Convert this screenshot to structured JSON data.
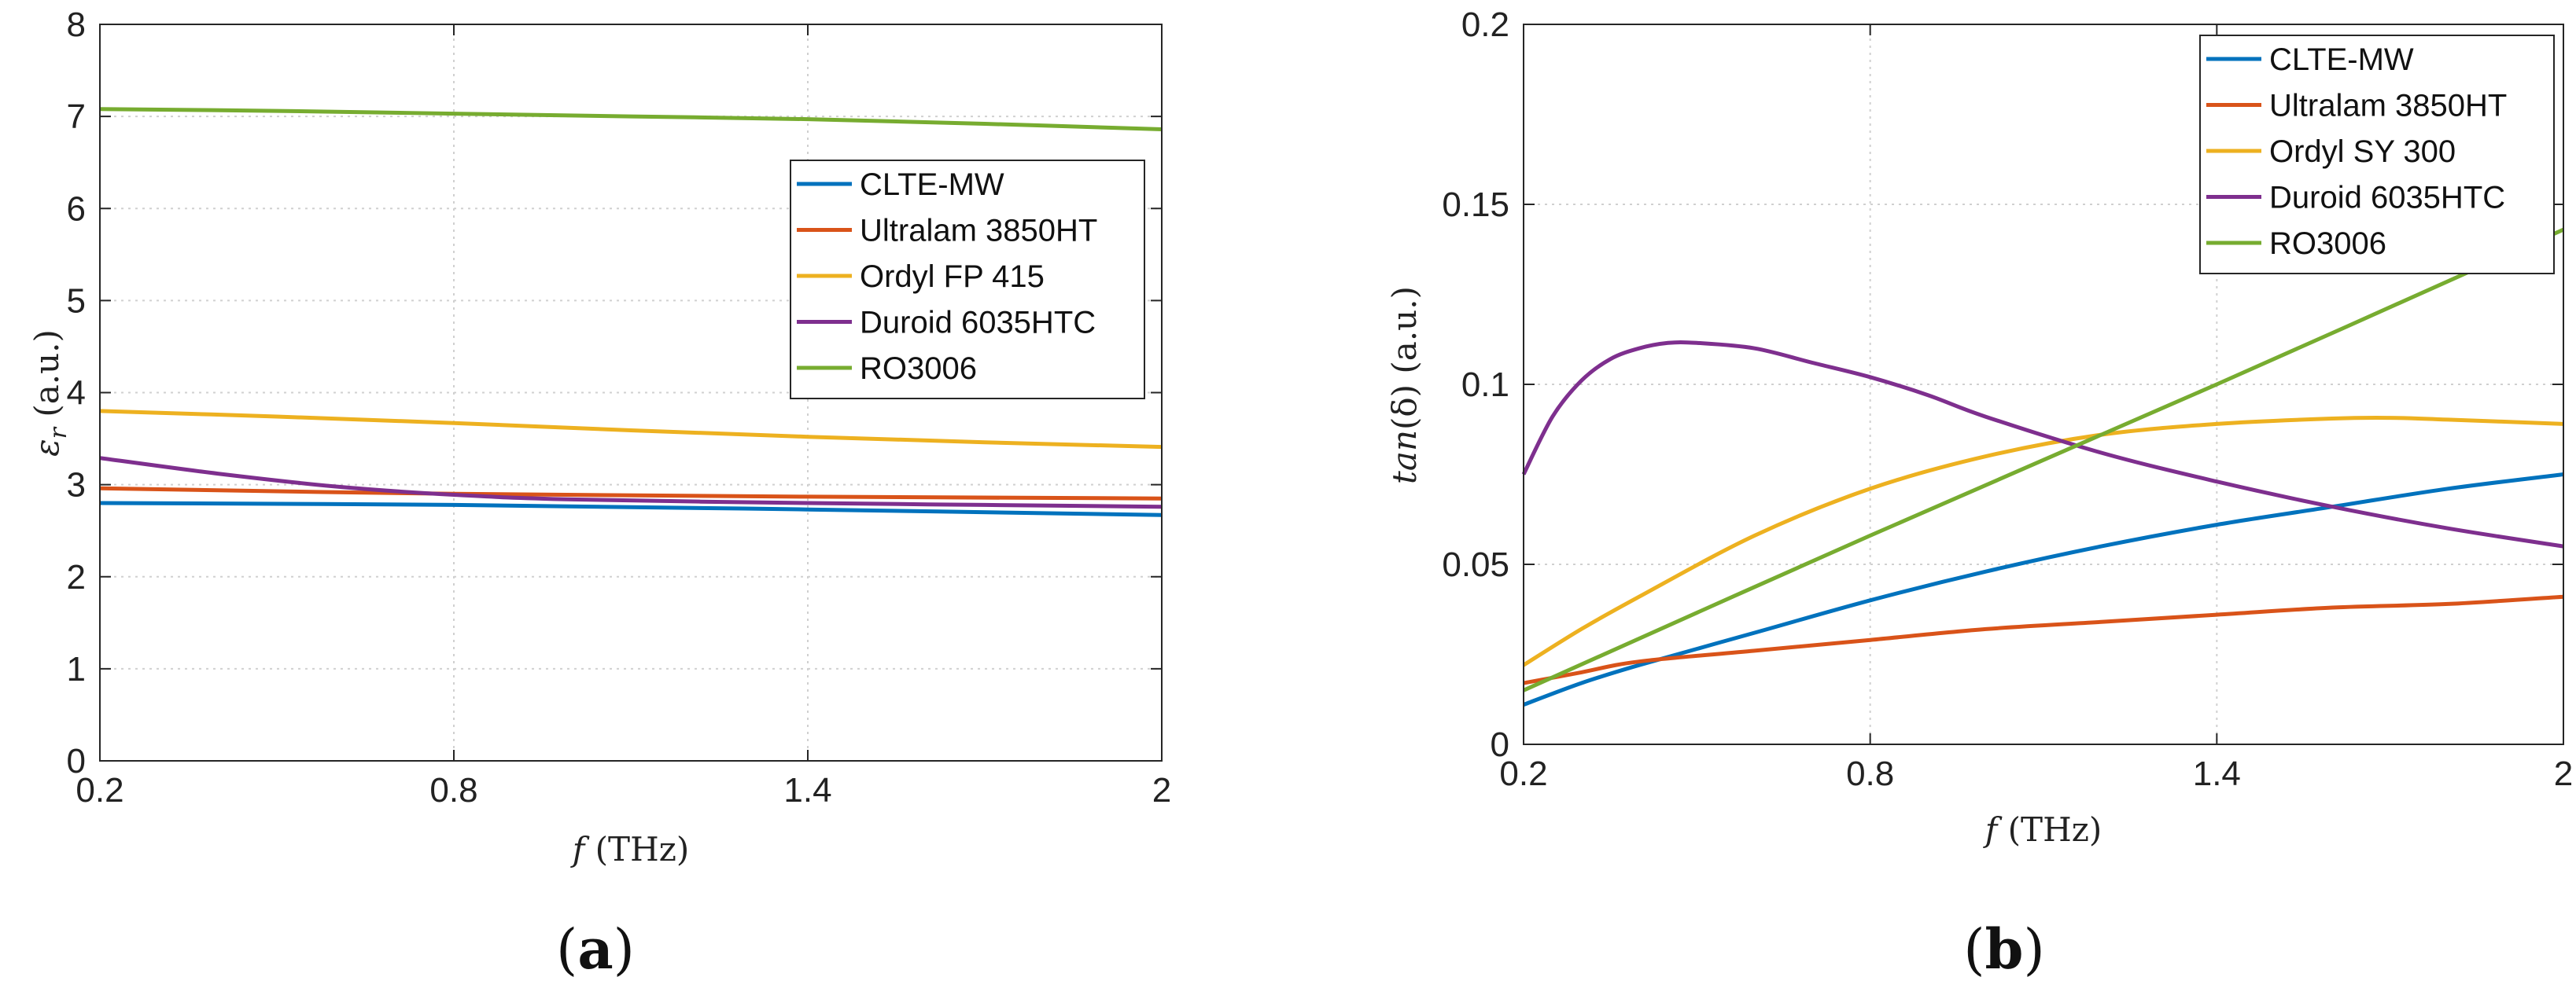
{
  "chart_data": [
    {
      "panel": "a",
      "type": "line",
      "ylabel_symbol": "ε",
      "ylabel_sub": "r",
      "ylabel_unit": "(a.u.)",
      "xlabel_var": "f",
      "xlabel_unit": "(THz)",
      "xlim": [
        0.2,
        2
      ],
      "ylim": [
        0,
        8
      ],
      "xticks": [
        "0.2",
        "0.8",
        "1.4",
        "2"
      ],
      "xtick_values": [
        0.2,
        0.8,
        1.4,
        2
      ],
      "yticks": [
        "0",
        "1",
        "2",
        "3",
        "4",
        "5",
        "6",
        "7",
        "8"
      ],
      "ytick_values": [
        0,
        1,
        2,
        3,
        4,
        5,
        6,
        7,
        8
      ],
      "grid": true,
      "legend_position": "center-right",
      "series": [
        {
          "name": "CLTE-MW",
          "color": "#0072BD",
          "x": [
            0.2,
            0.8,
            1.4,
            2.0
          ],
          "y": [
            2.8,
            2.78,
            2.73,
            2.67
          ]
        },
        {
          "name": "Ultralam 3850HT",
          "color": "#D95319",
          "x": [
            0.2,
            0.8,
            1.4,
            2.0
          ],
          "y": [
            2.96,
            2.9,
            2.87,
            2.85
          ]
        },
        {
          "name": "Ordyl FP 415",
          "color": "#EDB120",
          "x": [
            0.2,
            0.5,
            0.8,
            1.1,
            1.4,
            1.7,
            2.0
          ],
          "y": [
            3.8,
            3.74,
            3.67,
            3.59,
            3.52,
            3.46,
            3.41
          ]
        },
        {
          "name": "Duroid 6035HTC",
          "color": "#7E2F8E",
          "x": [
            0.2,
            0.4,
            0.6,
            0.8,
            1.0,
            1.4,
            1.7,
            2.0
          ],
          "y": [
            3.29,
            3.12,
            2.98,
            2.89,
            2.84,
            2.8,
            2.78,
            2.76
          ]
        },
        {
          "name": "RO3006",
          "color": "#77AC30",
          "x": [
            0.2,
            0.5,
            0.8,
            1.1,
            1.4,
            1.7,
            2.0
          ],
          "y": [
            7.08,
            7.06,
            7.03,
            7.0,
            6.97,
            6.92,
            6.86
          ]
        }
      ]
    },
    {
      "panel": "b",
      "type": "line",
      "ylabel_func": "tan",
      "ylabel_arg": "(δ)",
      "ylabel_unit": "(a.u.)",
      "xlabel_var": "f",
      "xlabel_unit": "(THz)",
      "xlim": [
        0.2,
        2
      ],
      "ylim": [
        0,
        0.2
      ],
      "xticks": [
        "0.2",
        "0.8",
        "1.4",
        "2"
      ],
      "xtick_values": [
        0.2,
        0.8,
        1.4,
        2
      ],
      "yticks": [
        "0",
        "0.05",
        "0.1",
        "0.15",
        "0.2"
      ],
      "ytick_values": [
        0,
        0.05,
        0.1,
        0.15,
        0.2
      ],
      "grid": true,
      "legend_position": "top-right",
      "series": [
        {
          "name": "CLTE-MW",
          "color": "#0072BD",
          "x": [
            0.2,
            0.3,
            0.4,
            0.6,
            0.8,
            1.0,
            1.2,
            1.4,
            1.6,
            1.8,
            2.0
          ],
          "y": [
            0.011,
            0.017,
            0.022,
            0.031,
            0.04,
            0.048,
            0.055,
            0.061,
            0.066,
            0.071,
            0.075
          ]
        },
        {
          "name": "Ultralam 3850HT",
          "color": "#D95319",
          "x": [
            0.2,
            0.3,
            0.4,
            0.6,
            0.8,
            1.0,
            1.2,
            1.4,
            1.6,
            1.8,
            2.0
          ],
          "y": [
            0.017,
            0.02,
            0.023,
            0.026,
            0.029,
            0.032,
            0.034,
            0.036,
            0.038,
            0.039,
            0.041
          ]
        },
        {
          "name": "Ordyl SY 300",
          "color": "#EDB120",
          "x": [
            0.2,
            0.3,
            0.4,
            0.6,
            0.8,
            1.0,
            1.2,
            1.4,
            1.6,
            1.7,
            1.8,
            2.0
          ],
          "y": [
            0.022,
            0.032,
            0.041,
            0.058,
            0.071,
            0.08,
            0.086,
            0.089,
            0.0905,
            0.0907,
            0.0902,
            0.089
          ]
        },
        {
          "name": "Duroid 6035HTC",
          "color": "#7E2F8E",
          "x": [
            0.2,
            0.25,
            0.3,
            0.35,
            0.4,
            0.45,
            0.5,
            0.6,
            0.7,
            0.8,
            0.9,
            1.0,
            1.2,
            1.4,
            1.6,
            1.8,
            2.0
          ],
          "y": [
            0.075,
            0.091,
            0.101,
            0.107,
            0.11,
            0.1115,
            0.1115,
            0.11,
            0.106,
            0.102,
            0.097,
            0.091,
            0.081,
            0.073,
            0.066,
            0.06,
            0.055
          ]
        },
        {
          "name": "RO3006",
          "color": "#77AC30",
          "x": [
            0.2,
            0.8,
            1.4,
            2.0
          ],
          "y": [
            0.015,
            0.058,
            0.1,
            0.143
          ]
        }
      ]
    }
  ],
  "captions": {
    "a": "a",
    "b": "b"
  }
}
